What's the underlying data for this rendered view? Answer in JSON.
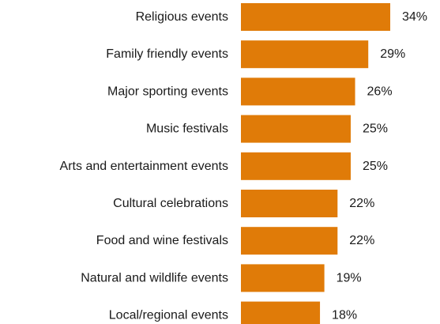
{
  "chart_data": {
    "type": "bar",
    "orientation": "horizontal",
    "categories": [
      "Religious events",
      "Family friendly events",
      "Major sporting events",
      "Music festivals",
      "Arts and entertainment events",
      "Cultural celebrations",
      "Food and wine festivals",
      "Natural and wildlife events",
      "Local/regional events"
    ],
    "values": [
      34,
      29,
      26,
      25,
      25,
      22,
      22,
      19,
      18
    ],
    "value_labels": [
      "34%",
      "29%",
      "26%",
      "25%",
      "25%",
      "22%",
      "22%",
      "19%",
      "18%"
    ],
    "xlim": [
      0,
      34
    ],
    "grid": false,
    "legend": "none",
    "bar_color": "#E07B08"
  }
}
